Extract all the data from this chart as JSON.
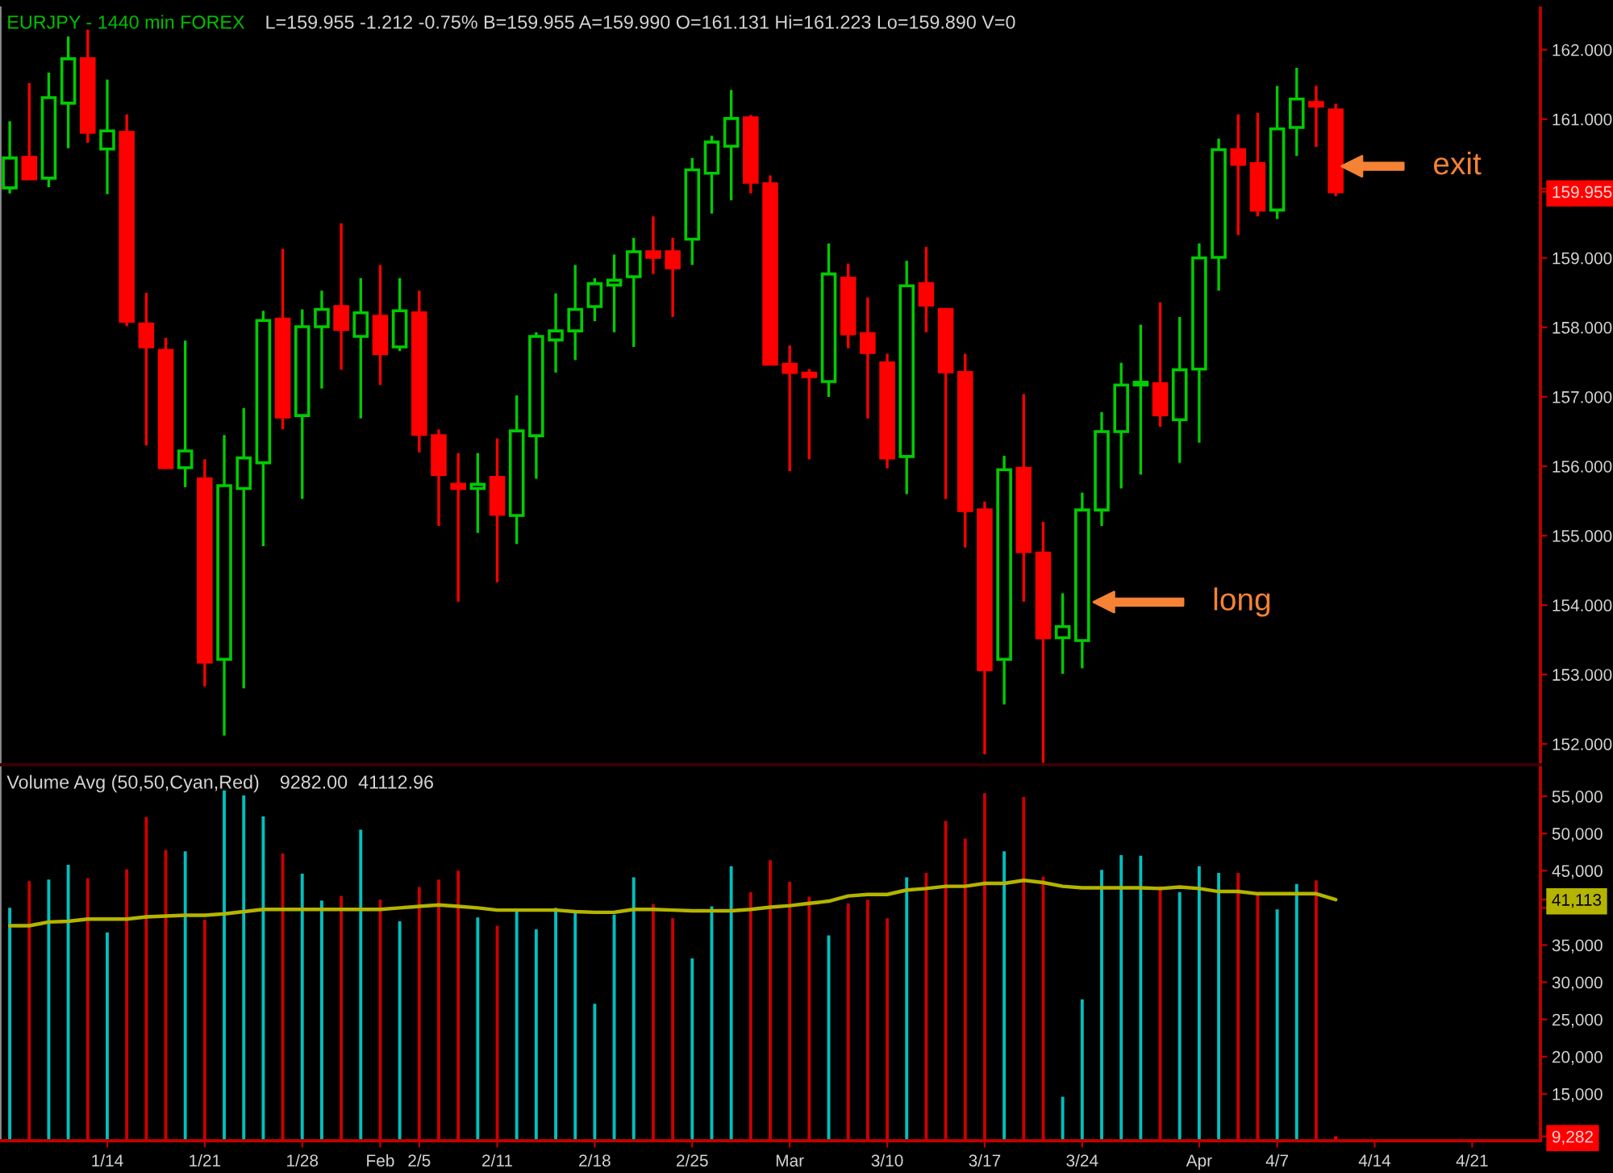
{
  "chart_data": [
    {
      "type": "candlestick",
      "title": "EURJPY - 1440 min FOREX",
      "subtitle": "L=159.955 -1.212 -0.75% B=159.955 A=159.990 O=161.131 Hi=161.223 Lo=159.890 V=0",
      "categories": [
        null,
        null,
        null,
        null,
        null,
        null,
        null,
        null,
        null,
        null,
        null,
        null,
        null,
        null,
        null,
        null,
        null,
        null,
        null,
        null,
        null,
        null,
        null,
        null,
        null,
        null,
        null,
        null,
        null,
        null,
        null,
        null,
        null,
        null,
        null,
        null,
        null,
        null,
        null,
        null,
        null,
        null,
        null,
        null,
        null,
        null,
        null,
        null,
        null,
        null,
        null,
        null,
        null,
        null,
        null,
        null,
        null,
        null,
        null,
        null,
        null,
        null,
        null,
        null,
        null,
        null,
        null,
        null,
        null,
        null,
        null,
        null,
        null,
        null,
        null,
        null,
        null,
        null,
        null
      ],
      "ohlc": [
        [
          160.01,
          160.97,
          159.93,
          160.44
        ],
        [
          160.45,
          161.52,
          160.13,
          160.14
        ],
        [
          160.15,
          161.67,
          160.02,
          161.31
        ],
        [
          161.23,
          162.19,
          160.58,
          161.87
        ],
        [
          161.87,
          162.29,
          160.66,
          160.81
        ],
        [
          160.57,
          161.57,
          159.92,
          160.83
        ],
        [
          160.81,
          161.07,
          158.02,
          158.09
        ],
        [
          158.05,
          158.5,
          156.3,
          157.72
        ],
        [
          157.67,
          157.85,
          155.97,
          155.98
        ],
        [
          155.98,
          157.81,
          155.7,
          156.22
        ],
        [
          155.82,
          156.1,
          152.83,
          153.18
        ],
        [
          153.22,
          156.45,
          152.12,
          155.72
        ],
        [
          155.68,
          156.84,
          152.8,
          156.12
        ],
        [
          156.05,
          158.24,
          154.85,
          158.1
        ],
        [
          158.12,
          159.13,
          156.53,
          156.71
        ],
        [
          156.73,
          158.26,
          155.53,
          158.01
        ],
        [
          158.01,
          158.53,
          157.12,
          158.26
        ],
        [
          158.3,
          159.5,
          157.39,
          157.97
        ],
        [
          157.87,
          158.71,
          156.69,
          158.21
        ],
        [
          158.16,
          158.9,
          157.17,
          157.62
        ],
        [
          157.72,
          158.71,
          157.66,
          158.24
        ],
        [
          158.21,
          158.53,
          156.2,
          156.46
        ],
        [
          156.44,
          156.53,
          155.14,
          155.88
        ],
        [
          155.74,
          156.19,
          154.05,
          155.68
        ],
        [
          155.68,
          156.19,
          155.04,
          155.74
        ],
        [
          155.84,
          156.4,
          154.33,
          155.31
        ],
        [
          155.29,
          157.02,
          154.88,
          156.51
        ],
        [
          156.44,
          157.93,
          155.82,
          157.87
        ],
        [
          157.82,
          158.49,
          157.35,
          157.95
        ],
        [
          157.95,
          158.9,
          157.53,
          158.26
        ],
        [
          158.3,
          158.71,
          158.09,
          158.63
        ],
        [
          158.61,
          159.05,
          157.93,
          158.68
        ],
        [
          158.73,
          159.29,
          157.72,
          159.09
        ],
        [
          159.09,
          159.6,
          158.77,
          159.01
        ],
        [
          159.09,
          159.29,
          158.15,
          158.86
        ],
        [
          159.27,
          160.44,
          158.9,
          160.27
        ],
        [
          160.22,
          160.76,
          159.64,
          160.67
        ],
        [
          160.61,
          161.42,
          159.83,
          161.01
        ],
        [
          161.02,
          161.06,
          159.93,
          160.09
        ],
        [
          160.07,
          160.19,
          157.46,
          157.47
        ],
        [
          157.47,
          157.74,
          155.93,
          157.35
        ],
        [
          157.34,
          157.4,
          156.1,
          157.29
        ],
        [
          157.22,
          159.21,
          157.0,
          158.77
        ],
        [
          158.71,
          158.92,
          157.7,
          157.91
        ],
        [
          157.91,
          158.43,
          156.69,
          157.64
        ],
        [
          157.49,
          157.62,
          155.97,
          156.12
        ],
        [
          156.14,
          158.96,
          155.6,
          158.6
        ],
        [
          158.63,
          159.16,
          157.93,
          158.32
        ],
        [
          158.26,
          158.28,
          155.53,
          157.36
        ],
        [
          157.35,
          157.62,
          154.83,
          155.36
        ],
        [
          155.37,
          155.49,
          151.85,
          153.07
        ],
        [
          153.22,
          156.15,
          152.57,
          155.95
        ],
        [
          155.97,
          157.04,
          154.05,
          154.77
        ],
        [
          154.75,
          155.2,
          151.73,
          153.53
        ],
        [
          153.53,
          154.17,
          153.01,
          153.69
        ],
        [
          153.49,
          155.62,
          153.09,
          155.37
        ],
        [
          155.37,
          156.78,
          155.14,
          156.5
        ],
        [
          156.5,
          157.49,
          155.68,
          157.17
        ],
        [
          157.17,
          158.04,
          155.88,
          157.21
        ],
        [
          157.19,
          158.36,
          156.57,
          156.74
        ],
        [
          156.67,
          158.15,
          156.05,
          157.39
        ],
        [
          157.4,
          159.21,
          156.34,
          159.0
        ],
        [
          159.01,
          160.72,
          158.53,
          160.56
        ],
        [
          160.56,
          161.07,
          159.33,
          160.35
        ],
        [
          160.36,
          161.09,
          159.6,
          159.69
        ],
        [
          159.69,
          161.48,
          159.56,
          160.86
        ],
        [
          160.88,
          161.74,
          160.47,
          161.29
        ],
        [
          161.24,
          161.48,
          160.6,
          161.19
        ],
        [
          161.131,
          161.223,
          159.89,
          159.955
        ],
        null,
        null,
        null,
        null,
        null,
        null,
        null,
        null,
        null,
        null
      ],
      "colors": [
        "#00cc00",
        "#ff0000",
        "#00cc00",
        "#00cc00",
        "#ff0000",
        "#00cc00",
        "#ff0000",
        "#ff0000",
        "#ff0000",
        "#00cc00",
        "#ff0000",
        "#00cc00",
        "#00cc00",
        "#00cc00",
        "#ff0000",
        "#00cc00",
        "#00cc00",
        "#ff0000",
        "#00cc00",
        "#ff0000",
        "#00cc00",
        "#ff0000",
        "#ff0000",
        "#ff0000",
        "#00cc00",
        "#ff0000",
        "#00cc00",
        "#00cc00",
        "#00cc00",
        "#00cc00",
        "#00cc00",
        "#00cc00",
        "#00cc00",
        "#ff0000",
        "#ff0000",
        "#00cc00",
        "#00cc00",
        "#00cc00",
        "#ff0000",
        "#ff0000",
        "#ff0000",
        "#ff0000",
        "#00cc00",
        "#ff0000",
        "#ff0000",
        "#ff0000",
        "#00cc00",
        "#ff0000",
        "#ff0000",
        "#ff0000",
        "#ff0000",
        "#00cc00",
        "#ff0000",
        "#ff0000",
        "#00cc00",
        "#00cc00",
        "#00cc00",
        "#00cc00",
        "#00cc00",
        "#ff0000",
        "#00cc00",
        "#00cc00",
        "#00cc00",
        "#ff0000",
        "#ff0000",
        "#00cc00",
        "#00cc00",
        "#ff0000",
        "#ff0000",
        null,
        null,
        null,
        null,
        null,
        null,
        null,
        null,
        null,
        null
      ],
      "ylim": [
        151.7,
        162.6
      ],
      "yticks": [
        {
          "value": 152,
          "label": "152.000"
        },
        {
          "value": 153,
          "label": "153.000"
        },
        {
          "value": 154,
          "label": "154.000"
        },
        {
          "value": 155,
          "label": "155.000"
        },
        {
          "value": 156,
          "label": "156.000"
        },
        {
          "value": 157,
          "label": "157.000"
        },
        {
          "value": 158,
          "label": "158.000"
        },
        {
          "value": 159,
          "label": "159.000"
        },
        159.955,
        {
          "value": 160,
          "label": null
        },
        {
          "value": 161,
          "label": "161.000"
        },
        {
          "value": 162,
          "label": "162.000"
        }
      ],
      "annotations": [
        "long",
        "exit"
      ],
      "tick_labels": "y"
    },
    {
      "type": "bar",
      "title": "Volume Avg (50,50,Cyan,Red)",
      "subtitle": "9282.00  41112.96",
      "categories": [
        null,
        null,
        null,
        null,
        null,
        "1/14",
        null,
        null,
        null,
        null,
        "1/21",
        null,
        null,
        null,
        null,
        "1/28",
        null,
        null,
        null,
        "Feb",
        null,
        "2/5",
        null,
        null,
        null,
        "2/11",
        null,
        null,
        null,
        null,
        "2/18",
        null,
        null,
        null,
        null,
        "2/25",
        null,
        null,
        null,
        null,
        "Mar",
        null,
        null,
        null,
        null,
        "3/10",
        null,
        null,
        null,
        null,
        "3/17",
        null,
        null,
        null,
        null,
        "3/24",
        null,
        null,
        null,
        null,
        null,
        "Apr",
        null,
        null,
        null,
        "4/7",
        null,
        null,
        null,
        null,
        "4/14",
        null,
        null,
        null,
        null,
        "4/21",
        null,
        null,
        null
      ],
      "series": [
        {
          "type": "bar",
          "values": [
            40000,
            43600,
            43800,
            45800,
            44000,
            36700,
            45200,
            52200,
            47800,
            47600,
            38400,
            55800,
            55100,
            52300,
            47300,
            44600,
            41000,
            41600,
            50500,
            41100,
            38200,
            42800,
            43800,
            45000,
            38700,
            37600,
            39700,
            37100,
            40000,
            39400,
            27100,
            39100,
            44100,
            40500,
            38600,
            33200,
            40200,
            45600,
            42100,
            46400,
            43500,
            41500,
            36300,
            40600,
            41100,
            38600,
            44100,
            44700,
            51700,
            49300,
            55400,
            47600,
            54900,
            44200,
            14600,
            27700,
            45100,
            47100,
            47000,
            42900,
            42100,
            45600,
            44700,
            44700,
            41800,
            39800,
            43200,
            43700,
            9282,
            null,
            null,
            null,
            null,
            null,
            null,
            null,
            null,
            null,
            null
          ],
          "colors": [
            "#00c0c0",
            "#cc0000",
            "#00c0c0",
            "#00c0c0",
            "#cc0000",
            "#00c0c0",
            "#cc0000",
            "#cc0000",
            "#cc0000",
            "#00c0c0",
            "#cc0000",
            "#00c0c0",
            "#00c0c0",
            "#00c0c0",
            "#cc0000",
            "#00c0c0",
            "#00c0c0",
            "#cc0000",
            "#00c0c0",
            "#cc0000",
            "#00c0c0",
            "#cc0000",
            "#cc0000",
            "#cc0000",
            "#00c0c0",
            "#cc0000",
            "#00c0c0",
            "#00c0c0",
            "#00c0c0",
            "#00c0c0",
            "#00c0c0",
            "#00c0c0",
            "#00c0c0",
            "#cc0000",
            "#cc0000",
            "#00c0c0",
            "#00c0c0",
            "#00c0c0",
            "#cc0000",
            "#cc0000",
            "#cc0000",
            "#cc0000",
            "#00c0c0",
            "#cc0000",
            "#cc0000",
            "#cc0000",
            "#00c0c0",
            "#cc0000",
            "#cc0000",
            "#cc0000",
            "#cc0000",
            "#00c0c0",
            "#cc0000",
            "#cc0000",
            "#00c0c0",
            "#00c0c0",
            "#00c0c0",
            "#00c0c0",
            "#00c0c0",
            "#cc0000",
            "#00c0c0",
            "#00c0c0",
            "#00c0c0",
            "#cc0000",
            "#cc0000",
            "#00c0c0",
            "#00c0c0",
            "#cc0000",
            "#ff0000",
            null,
            null,
            null,
            null,
            null,
            null,
            null,
            null,
            null,
            null
          ]
        },
        {
          "type": "line",
          "color": "#b4b400",
          "values": [
            37600,
            37600,
            38100,
            38200,
            38500,
            38500,
            38500,
            38800,
            38900,
            39000,
            39000,
            39200,
            39500,
            39800,
            39800,
            39800,
            39800,
            39800,
            39800,
            39800,
            40000,
            40200,
            40400,
            40200,
            40000,
            39700,
            39700,
            39700,
            39700,
            39500,
            39400,
            39400,
            39800,
            39800,
            39700,
            39600,
            39600,
            39600,
            39800,
            40100,
            40300,
            40600,
            40900,
            41600,
            41800,
            41800,
            42400,
            42600,
            42900,
            42900,
            43300,
            43300,
            43700,
            43400,
            42900,
            42700,
            42700,
            42700,
            42700,
            42600,
            42800,
            42600,
            42200,
            42200,
            41900,
            41900,
            41900,
            41900,
            41113,
            null,
            null,
            null,
            null,
            null,
            null,
            null,
            null,
            null,
            null
          ]
        }
      ],
      "ylim": [
        8700,
        58800
      ],
      "yticks": [
        {
          "value": 9282,
          "label": "9,282"
        },
        {
          "value": 15000,
          "label": "15,000"
        },
        {
          "value": 20000,
          "label": "20,000"
        },
        {
          "value": 25000,
          "label": "25,000"
        },
        {
          "value": 30000,
          "label": "30,000"
        },
        {
          "value": 35000,
          "label": "35,000"
        },
        {
          "value": 40000,
          "label": null
        },
        {
          "value": 41113,
          "label": "41,113"
        },
        {
          "value": 45000,
          "label": "45,000"
        },
        {
          "value": 50000,
          "label": "50,000"
        },
        {
          "value": 55000,
          "label": "55,000"
        }
      ]
    }
  ]
}
